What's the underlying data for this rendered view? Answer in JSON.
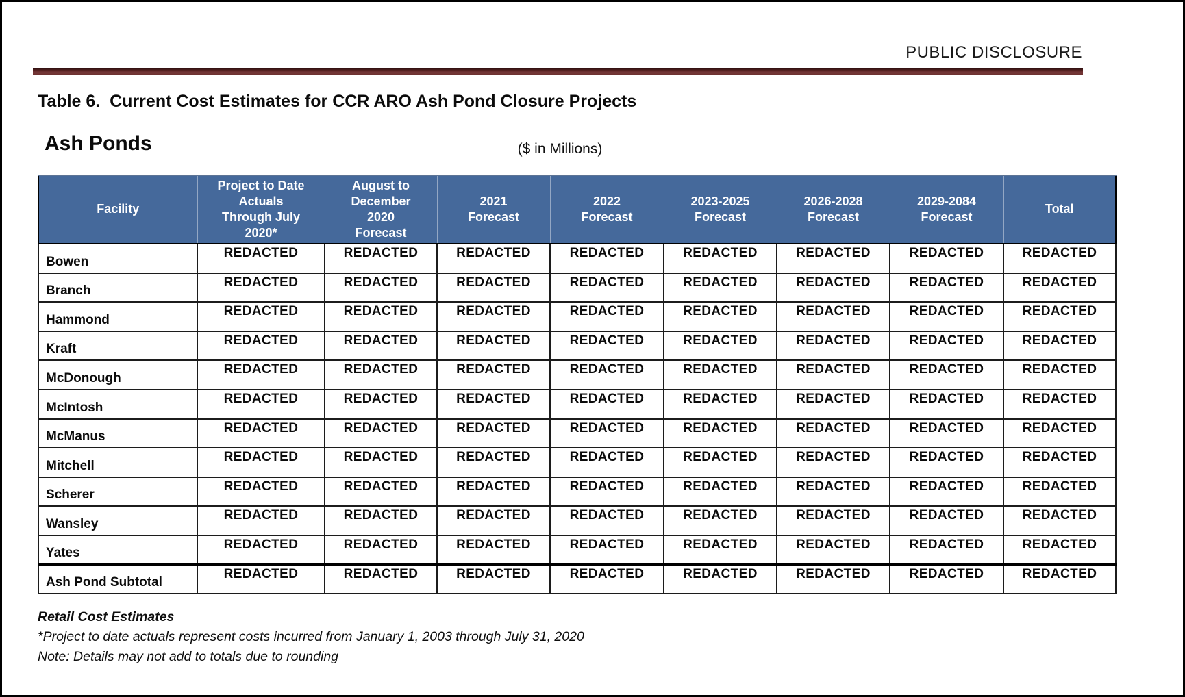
{
  "page": {
    "disclosure_label": "PUBLIC DISCLOSURE",
    "title": "Table 6.  Current Cost Estimates for CCR ARO Ash Pond Closure Projects",
    "section_heading": "Ash Ponds",
    "units_label": "($ in Millions)"
  },
  "colors": {
    "table_header_bg": "#45699B",
    "table_header_text": "#FFFFFF",
    "divider_rule": "#6B2D2D"
  },
  "table": {
    "columns": [
      "Facility",
      "Project to Date\nActuals\nThrough July\n2020*",
      "August to\nDecember\n2020\nForecast",
      "2021\nForecast",
      "2022\nForecast",
      "2023-2025\nForecast",
      "2026-2028\nForecast",
      "2029-2084\nForecast",
      "Total"
    ],
    "rows": [
      {
        "facility": "Bowen",
        "subtotal": false,
        "values": [
          "REDACTED",
          "REDACTED",
          "REDACTED",
          "REDACTED",
          "REDACTED",
          "REDACTED",
          "REDACTED",
          "REDACTED"
        ]
      },
      {
        "facility": "Branch",
        "subtotal": false,
        "values": [
          "REDACTED",
          "REDACTED",
          "REDACTED",
          "REDACTED",
          "REDACTED",
          "REDACTED",
          "REDACTED",
          "REDACTED"
        ]
      },
      {
        "facility": "Hammond",
        "subtotal": false,
        "values": [
          "REDACTED",
          "REDACTED",
          "REDACTED",
          "REDACTED",
          "REDACTED",
          "REDACTED",
          "REDACTED",
          "REDACTED"
        ]
      },
      {
        "facility": "Kraft",
        "subtotal": false,
        "values": [
          "REDACTED",
          "REDACTED",
          "REDACTED",
          "REDACTED",
          "REDACTED",
          "REDACTED",
          "REDACTED",
          "REDACTED"
        ]
      },
      {
        "facility": "McDonough",
        "subtotal": false,
        "values": [
          "REDACTED",
          "REDACTED",
          "REDACTED",
          "REDACTED",
          "REDACTED",
          "REDACTED",
          "REDACTED",
          "REDACTED"
        ]
      },
      {
        "facility": "McIntosh",
        "subtotal": false,
        "values": [
          "REDACTED",
          "REDACTED",
          "REDACTED",
          "REDACTED",
          "REDACTED",
          "REDACTED",
          "REDACTED",
          "REDACTED"
        ]
      },
      {
        "facility": "McManus",
        "subtotal": false,
        "values": [
          "REDACTED",
          "REDACTED",
          "REDACTED",
          "REDACTED",
          "REDACTED",
          "REDACTED",
          "REDACTED",
          "REDACTED"
        ]
      },
      {
        "facility": "Mitchell",
        "subtotal": false,
        "values": [
          "REDACTED",
          "REDACTED",
          "REDACTED",
          "REDACTED",
          "REDACTED",
          "REDACTED",
          "REDACTED",
          "REDACTED"
        ]
      },
      {
        "facility": "Scherer",
        "subtotal": false,
        "values": [
          "REDACTED",
          "REDACTED",
          "REDACTED",
          "REDACTED",
          "REDACTED",
          "REDACTED",
          "REDACTED",
          "REDACTED"
        ]
      },
      {
        "facility": "Wansley",
        "subtotal": false,
        "values": [
          "REDACTED",
          "REDACTED",
          "REDACTED",
          "REDACTED",
          "REDACTED",
          "REDACTED",
          "REDACTED",
          "REDACTED"
        ]
      },
      {
        "facility": "Yates",
        "subtotal": false,
        "values": [
          "REDACTED",
          "REDACTED",
          "REDACTED",
          "REDACTED",
          "REDACTED",
          "REDACTED",
          "REDACTED",
          "REDACTED"
        ]
      },
      {
        "facility": "Ash Pond Subtotal",
        "subtotal": true,
        "values": [
          "REDACTED",
          "REDACTED",
          "REDACTED",
          "REDACTED",
          "REDACTED",
          "REDACTED",
          "REDACTED",
          "REDACTED"
        ]
      }
    ]
  },
  "footnotes": {
    "heading": "Retail Cost Estimates",
    "line1": "*Project to date actuals represent costs incurred from January 1, 2003 through July 31, 2020",
    "line2": "Note: Details may not add to totals due to rounding"
  }
}
